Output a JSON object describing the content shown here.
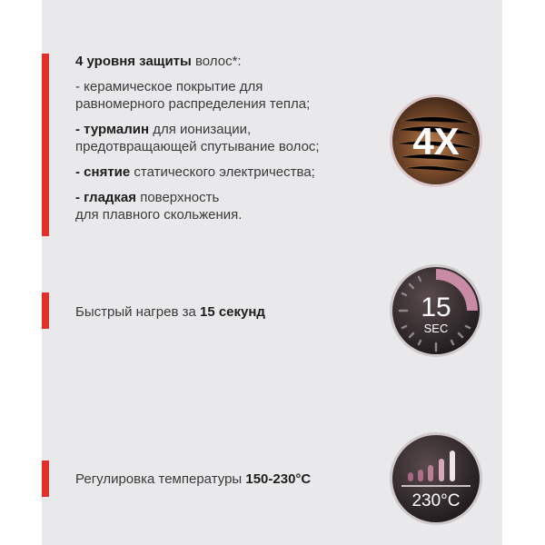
{
  "colors": {
    "accent_bar": "#e3302a",
    "panel_bg": "#e9e9eb",
    "icon_pink": "#c98aa4"
  },
  "features": [
    {
      "title_bold": "4 уровня защиты",
      "title_rest": " волос*:",
      "items": [
        {
          "bold": "",
          "text": "- керамическое покрытие для",
          "text2": "равномерного распределения тепла;"
        },
        {
          "bold": "- турмалин",
          "text": " для ионизации,",
          "text2": "предотвращающей спутывание волос;"
        },
        {
          "bold": "- снятие",
          "text": " статического электричества;",
          "text2": ""
        },
        {
          "bold": "- гладкая",
          "text": " поверхность",
          "text2": "для плавного скольжения."
        }
      ],
      "icon": {
        "name": "hair-protection-icon",
        "label": "4X"
      }
    },
    {
      "text": "Быстрый нагрев за ",
      "bold": "15 секунд",
      "icon": {
        "name": "timer-icon",
        "number": "15",
        "unit": "SEC"
      }
    },
    {
      "text": "Регулировка температуры ",
      "bold": "150-230°C",
      "icon": {
        "name": "temperature-icon",
        "label": "230°C"
      }
    }
  ]
}
